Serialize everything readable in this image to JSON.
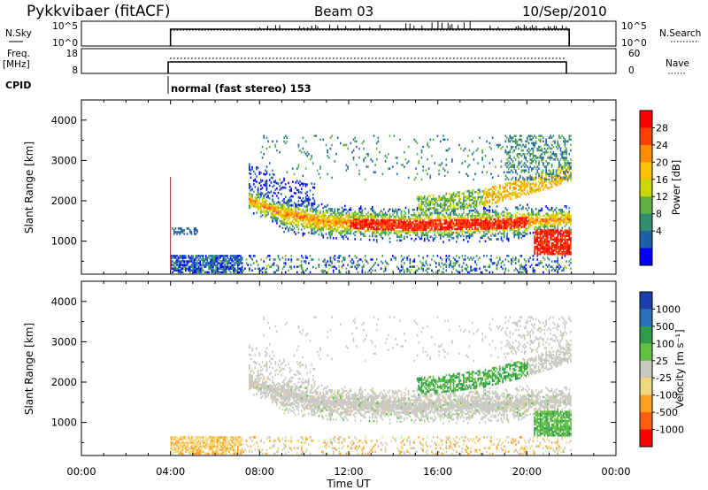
{
  "header": {
    "station": "Pykkvibaer (fitACF)",
    "beam": "Beam 03",
    "date": "10/Sep/2010"
  },
  "top_panels": {
    "nsky_label": "N.Sky",
    "nsky_ticks": [
      "10^5",
      "10^0"
    ],
    "nsearch_label": "N.Search",
    "nsearch_ticks": [
      "10^5",
      "10^0"
    ],
    "freq_label_1": "Freq.",
    "freq_label_2": "[MHz]",
    "freq_ticks": [
      "18",
      "8"
    ],
    "nave_label": "Nave",
    "nave_ticks": [
      "60",
      "0"
    ],
    "cpid_label": "CPID",
    "cpid_text": "normal (fast stereo) 153"
  },
  "chart_data": [
    {
      "type": "heatmap",
      "title": "",
      "xlabel": "",
      "ylabel": "Slant Range [km]",
      "x_range_hours": [
        0,
        24
      ],
      "ylim": [
        180,
        4500
      ],
      "y_ticks": [
        "1000",
        "2000",
        "3000",
        "4000"
      ],
      "data_x_start": 4.0,
      "data_x_end": 22.0,
      "colorbar": {
        "label": "Power [dB]",
        "ticks": [
          "28",
          "24",
          "20",
          "16",
          "12",
          "8",
          "4"
        ],
        "colors": [
          "#ff0000",
          "#ff4000",
          "#ff8c00",
          "#ffc000",
          "#c8d800",
          "#5fb040",
          "#2f8f6f",
          "#1d5fa8",
          "#0000ff"
        ]
      },
      "features": [
        {
          "name": "main-band",
          "t": [
            7.5,
            9,
            11,
            13,
            15,
            17,
            19,
            21,
            22
          ],
          "range_km": [
            2000,
            1650,
            1450,
            1400,
            1380,
            1400,
            1420,
            1500,
            1500
          ],
          "width_km": 260
        },
        {
          "name": "upper-band",
          "t": [
            15,
            16.5,
            18,
            19.5,
            21,
            22
          ],
          "range_km": [
            1850,
            1950,
            2050,
            2250,
            2500,
            2700
          ]
        },
        {
          "name": "near-range",
          "t": [
            4,
            7
          ],
          "range_km": [
            300,
            600
          ]
        },
        {
          "name": "strong-echo",
          "t": [
            20.5,
            22
          ],
          "range_km": [
            700,
            1200
          ]
        }
      ]
    },
    {
      "type": "heatmap",
      "title": "",
      "xlabel": "Time UT",
      "ylabel": "Slant Range [km]",
      "x_range_hours": [
        0,
        24
      ],
      "ylim": [
        180,
        4500
      ],
      "y_ticks": [
        "1000",
        "2000",
        "3000",
        "4000"
      ],
      "x_ticks": [
        "00:00",
        "04:00",
        "08:00",
        "12:00",
        "16:00",
        "20:00",
        "00:00"
      ],
      "colorbar": {
        "label": "Velocity [m s⁻¹]",
        "ticks": [
          "1000",
          "500",
          "100",
          "25",
          "-25",
          "-100",
          "-500",
          "-1000"
        ],
        "colors": [
          "#1b3fb0",
          "#2a70b8",
          "#2e9a4a",
          "#60c040",
          "#c8c8c0",
          "#f0d880",
          "#ffa020",
          "#ff6010",
          "#ff0000"
        ]
      },
      "features": [
        {
          "name": "ground-scatter-band",
          "color": "gray"
        },
        {
          "name": "near-range-negative",
          "t": [
            4,
            7
          ],
          "range_km": [
            300,
            600
          ],
          "color": "orange"
        },
        {
          "name": "upper-band-positive",
          "t": [
            15,
            20
          ],
          "range_km": [
            1900,
            2400
          ],
          "color": "green"
        }
      ]
    }
  ]
}
